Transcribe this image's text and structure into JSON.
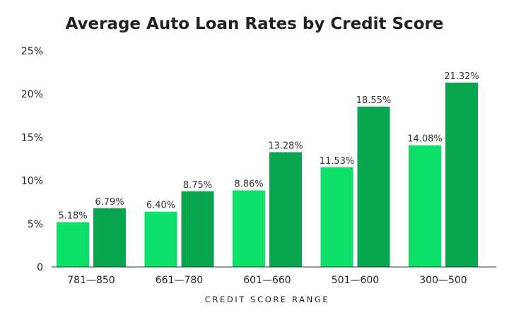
{
  "chart_data": {
    "type": "bar",
    "title": "Average Auto Loan Rates by Credit Score",
    "xlabel": "CREDIT SCORE RANGE",
    "ylabel": "",
    "categories": [
      "781—850",
      "661—780",
      "601—660",
      "501—600",
      "300—500"
    ],
    "series": [
      {
        "color": "#0fe06a",
        "values": [
          5.18,
          6.4,
          8.86,
          11.53,
          14.08
        ],
        "labels": [
          "5.18%",
          "6.40%",
          "8.86%",
          "11.53%",
          "14.08%"
        ]
      },
      {
        "color": "#07a64e",
        "values": [
          6.79,
          8.75,
          13.28,
          18.55,
          21.32
        ],
        "labels": [
          "6.79%",
          "8.75%",
          "13.28%",
          "18.55%",
          "21.32%"
        ]
      }
    ],
    "ylim": [
      0,
      25
    ],
    "yticks": [
      0,
      5,
      10,
      15,
      20,
      25
    ],
    "ytick_labels": [
      "0",
      "5%",
      "10%",
      "15%",
      "20%",
      "25%"
    ],
    "grid": false,
    "legend": "none",
    "colors": {
      "axis": "#333333",
      "text": "#222222"
    }
  }
}
